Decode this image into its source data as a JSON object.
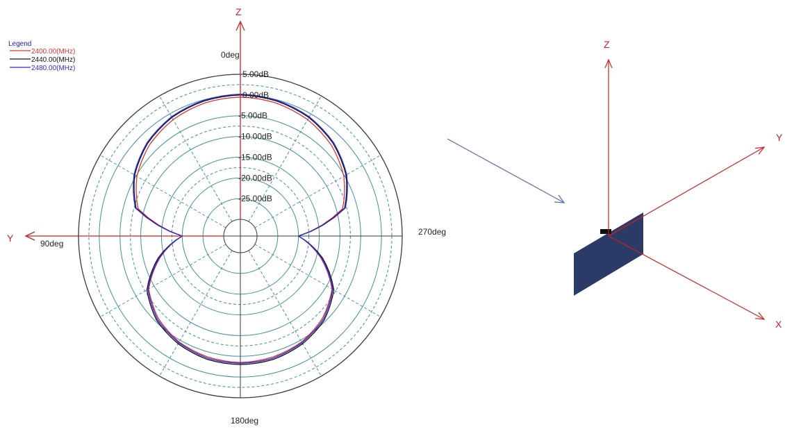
{
  "legend": {
    "title": "Legend",
    "entries": [
      {
        "label": "2400.00(MHz)",
        "color": "#e03030"
      },
      {
        "label": "2440.00(MHz)",
        "color": "#111111"
      },
      {
        "label": "2480.00(MHz)",
        "color": "#2a2ae0"
      }
    ]
  },
  "chart_data": {
    "type": "polar",
    "radial_unit": "dB",
    "radial_range": [
      -30,
      5
    ],
    "ring_labels": [
      "5.00dB",
      "0.00dB",
      "-5.00dB",
      "-10.00dB",
      "-15.00dB",
      "-20.00dB",
      "-25.00dB"
    ],
    "ring_values": [
      5,
      0,
      -5,
      -10,
      -15,
      -20,
      -25
    ],
    "angle_labels": {
      "top": "0deg",
      "left": "90deg",
      "bottom": "180deg",
      "right": "270deg"
    },
    "grid": true,
    "legend_position": "top-left",
    "angles_deg": [
      0,
      15,
      30,
      45,
      60,
      75,
      90,
      105,
      120,
      135,
      150,
      165,
      180,
      195,
      210,
      225,
      240,
      255,
      270,
      285,
      300,
      315,
      330,
      345
    ],
    "series": [
      {
        "name": "2400.00(MHz)",
        "color": "#e03030",
        "values": [
          -0.5,
          -0.8,
          -1.6,
          -3.0,
          -5.2,
          -8.5,
          -20.0,
          -14.0,
          -8.5,
          -6.0,
          -4.5,
          -3.8,
          -3.5,
          -3.8,
          -4.5,
          -6.0,
          -8.5,
          -14.0,
          -20.0,
          -8.5,
          -5.2,
          -3.0,
          -1.6,
          -0.8
        ]
      },
      {
        "name": "2440.00(MHz)",
        "color": "#111111",
        "values": [
          0.0,
          -0.3,
          -1.0,
          -2.4,
          -4.6,
          -8.0,
          -20.0,
          -13.5,
          -8.0,
          -5.4,
          -4.0,
          -3.2,
          -3.0,
          -3.2,
          -4.0,
          -5.4,
          -8.0,
          -13.5,
          -20.0,
          -8.0,
          -4.6,
          -2.4,
          -1.0,
          -0.3
        ]
      },
      {
        "name": "2480.00(MHz)",
        "color": "#2a2ae0",
        "values": [
          0.2,
          -0.1,
          -0.8,
          -2.2,
          -4.4,
          -7.8,
          -20.0,
          -13.8,
          -8.3,
          -5.7,
          -4.3,
          -3.5,
          -3.3,
          -3.5,
          -4.3,
          -5.7,
          -8.3,
          -13.8,
          -20.0,
          -7.8,
          -4.4,
          -2.2,
          -0.8,
          -0.1
        ]
      }
    ]
  },
  "polar_axes": {
    "top": "Z",
    "left": "Y"
  },
  "view3d": {
    "axes": {
      "z": "Z",
      "y": "Y",
      "x": "X"
    },
    "board_color": "#2b3a66",
    "axis_color": "#cc2222"
  }
}
